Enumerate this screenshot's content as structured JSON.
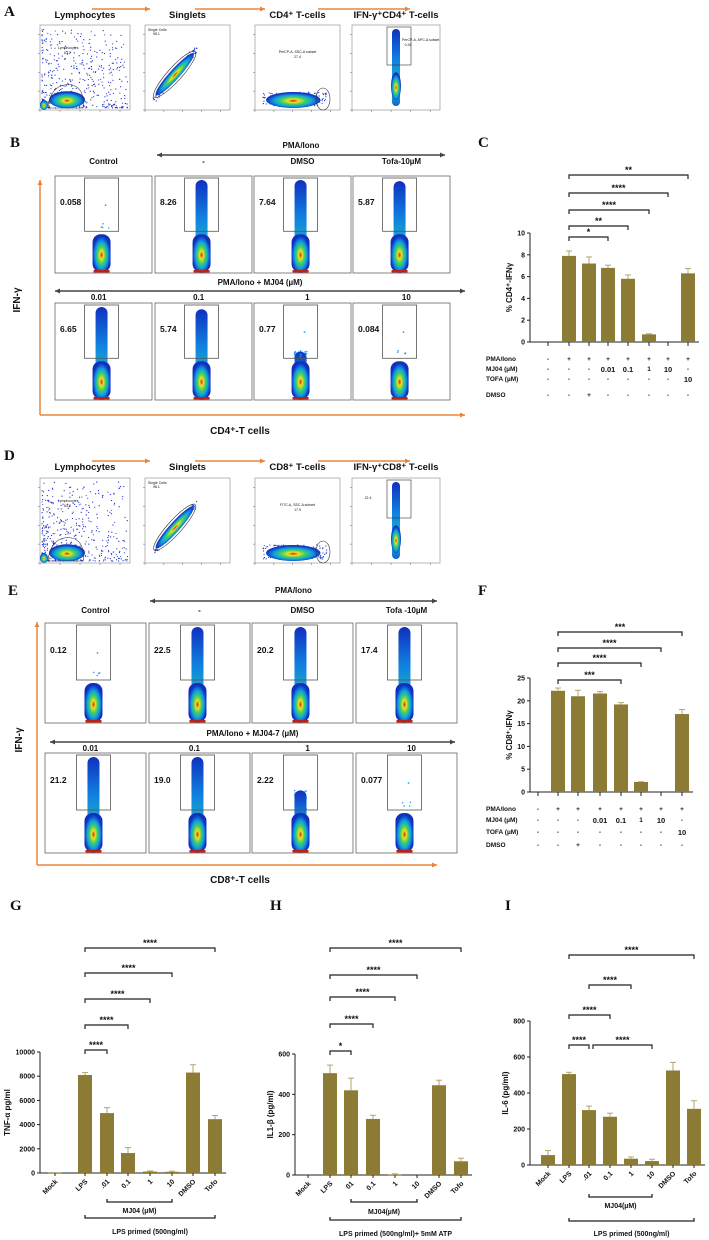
{
  "colors": {
    "bar": "#8b7b35",
    "error": "#b5a56a",
    "arrow": "#e8853d",
    "gate": "#555555"
  },
  "panel_labels": {
    "A": "A",
    "B": "B",
    "C": "C",
    "D": "D",
    "E": "E",
    "F": "F",
    "G": "G",
    "H": "H",
    "I": "I"
  },
  "gating": [
    {
      "panel": "A",
      "plots": [
        {
          "title": "Lymphocytes",
          "gate_text": "Lymphocytes",
          "gate_value": "63.2"
        },
        {
          "title": "Singlets",
          "gate_text": "Single Cells",
          "gate_value": "98.1"
        },
        {
          "title": "CD4⁺ T-cells",
          "gate_text": "PerCP-A, SSC-A subset",
          "gate_value": "27.4"
        },
        {
          "title": "IFN-γ⁺CD4⁺ T-cells",
          "gate_text": "PerCP-A, APC-A subset",
          "gate_value": "0.26"
        }
      ]
    },
    {
      "panel": "D",
      "plots": [
        {
          "title": "Lymphocytes",
          "gate_text": "Lymphocytes",
          "gate_value": "63.2"
        },
        {
          "title": "Singlets",
          "gate_text": "Single Cells",
          "gate_value": "98.1"
        },
        {
          "title": "CD8⁺ T-cells",
          "gate_text": "FITC-A, SSC-A subset",
          "gate_value": "17.9"
        },
        {
          "title": "IFN-γ⁺CD8⁺ T-cells",
          "gate_text": "",
          "gate_value": "22.4"
        }
      ]
    }
  ],
  "ifn_grids": [
    {
      "panel": "B",
      "top_group": "PMA/Iono",
      "extra_dash": "-",
      "top_labels": [
        "Control",
        "-",
        "DMSO",
        "Tofa-10µM"
      ],
      "mid_label": "PMA/Iono +   MJ04 (µM)",
      "bottom_labels": [
        "0.01",
        "0.1",
        "1",
        "10"
      ],
      "values": [
        "0.058",
        "8.26",
        "7.64",
        "5.87",
        "6.65",
        "5.74",
        "0.77",
        "0.084"
      ],
      "y_axis": "IFN-γ",
      "x_axis": "CD4⁺-T cells"
    },
    {
      "panel": "E",
      "top_group": "PMA/Iono",
      "extra_dash": "",
      "top_labels": [
        "Control",
        "-",
        "DMSO",
        "Tofa -10µM"
      ],
      "mid_label": "PMA/Iono + MJ04-7 (µM)",
      "bottom_labels": [
        "0.01",
        "0.1",
        "1",
        "10"
      ],
      "values": [
        "0.12",
        "22.5",
        "20.2",
        "17.4",
        "21.2",
        "19.0",
        "2.22",
        "0.077"
      ],
      "y_axis": "IFN-γ",
      "x_axis": "CD8⁺-T cells"
    }
  ],
  "chart_data": [
    {
      "panel": "C",
      "type": "bar",
      "ylabel": "% CD4⁺-IFNγ",
      "ylim": [
        0,
        10
      ],
      "yticks": [
        "0",
        "2",
        "4",
        "6",
        "8",
        "10"
      ],
      "values": [
        0,
        7.9,
        7.2,
        6.8,
        5.8,
        0.7,
        0,
        6.3
      ],
      "errors": [
        0,
        0.45,
        0.6,
        0.25,
        0.35,
        0.05,
        0,
        0.45
      ],
      "significance": [
        {
          "from": 1,
          "to": 3,
          "label": "*"
        },
        {
          "from": 1,
          "to": 4,
          "label": "**"
        },
        {
          "from": 1,
          "to": 5,
          "label": "****"
        },
        {
          "from": 1,
          "to": 6,
          "label": "****"
        },
        {
          "from": 1,
          "to": 7,
          "label": "**"
        }
      ],
      "conditions": [
        {
          "label": "PMA/Iono",
          "values": [
            "-",
            "+",
            "+",
            "+",
            "+",
            "+",
            "+",
            "+"
          ]
        },
        {
          "label": "MJ04 (µM)",
          "values": [
            "-",
            "-",
            "-",
            "0.01",
            "0.1",
            "1",
            "10",
            "-"
          ]
        },
        {
          "label": "TOFA (µM)",
          "values": [
            "-",
            "-",
            "-",
            "-",
            "-",
            "-",
            "-",
            "10"
          ]
        },
        {
          "label": "DMSO",
          "values": [
            "-",
            "-",
            "+",
            "-",
            "-",
            "-",
            "-",
            "-"
          ]
        }
      ]
    },
    {
      "panel": "F",
      "type": "bar",
      "ylabel": "% CD8⁺-IFNγ",
      "ylim": [
        0,
        25
      ],
      "yticks": [
        "0",
        "5",
        "10",
        "15",
        "20",
        "25"
      ],
      "values": [
        0,
        22.2,
        21.0,
        21.6,
        19.2,
        2.2,
        0,
        17.1
      ],
      "errors": [
        0,
        0.6,
        1.3,
        0.4,
        0.4,
        0.05,
        0,
        1.0
      ],
      "significance": [
        {
          "from": 1,
          "to": 4,
          "label": "***"
        },
        {
          "from": 1,
          "to": 5,
          "label": "****"
        },
        {
          "from": 1,
          "to": 6,
          "label": "****"
        },
        {
          "from": 1,
          "to": 7,
          "label": "***"
        }
      ],
      "conditions": [
        {
          "label": "PMA/Iono",
          "values": [
            "-",
            "+",
            "+",
            "+",
            "+",
            "+",
            "+",
            "+"
          ]
        },
        {
          "label": "MJ04 (µM)",
          "values": [
            "-",
            "-",
            "-",
            "0.01",
            "0.1",
            "1",
            "10",
            "-"
          ]
        },
        {
          "label": "TOFA (µM)",
          "values": [
            "-",
            "-",
            "-",
            "-",
            "-",
            "-",
            "-",
            "10"
          ]
        },
        {
          "label": "DMSO",
          "values": [
            "-",
            "-",
            "+",
            "-",
            "-",
            "-",
            "-",
            "-"
          ]
        }
      ]
    },
    {
      "panel": "G",
      "type": "bar",
      "ylabel": "TNF-α pg/ml",
      "ylim": [
        0,
        10000
      ],
      "yticks": [
        "0",
        "2000",
        "4000",
        "6000",
        "8000",
        "10000"
      ],
      "categories": [
        "Mock",
        "LPS",
        ".01",
        "0.1",
        "1",
        "10",
        "DMSO",
        "Tofo"
      ],
      "values": [
        50,
        8100,
        4950,
        1650,
        120,
        100,
        8300,
        4450
      ],
      "errors": [
        0,
        200,
        450,
        450,
        50,
        50,
        650,
        300
      ],
      "significance": [
        {
          "from": 1,
          "to": 2,
          "label": "****"
        },
        {
          "from": 1,
          "to": 3,
          "label": "****"
        },
        {
          "from": 1,
          "to": 4,
          "label": "****"
        },
        {
          "from": 1,
          "to": 5,
          "label": "****"
        },
        {
          "from": 1,
          "to": 7,
          "label": "****"
        }
      ],
      "groups": [
        {
          "label": "MJ04 (µM)",
          "from": 2,
          "to": 5
        },
        {
          "label": "LPS primed (500ng/ml)",
          "from": 1,
          "to": 7
        }
      ]
    },
    {
      "panel": "H",
      "type": "bar",
      "ylabel": "IL1-β (pg/ml)",
      "ylim": [
        0,
        600
      ],
      "yticks": [
        "0",
        "200",
        "400",
        "600"
      ],
      "categories": [
        "Mock",
        "LPS",
        "01",
        "0.1",
        "1",
        "10",
        "DMSO",
        "Tofo"
      ],
      "values": [
        0,
        505,
        420,
        278,
        3,
        0,
        445,
        68
      ],
      "errors": [
        0,
        40,
        60,
        18,
        3,
        0,
        25,
        15
      ],
      "significance": [
        {
          "from": 1,
          "to": 2,
          "label": "*"
        },
        {
          "from": 1,
          "to": 3,
          "label": "****"
        },
        {
          "from": 1,
          "to": 4,
          "label": "****"
        },
        {
          "from": 1,
          "to": 5,
          "label": "****"
        },
        {
          "from": 1,
          "to": 7,
          "label": "****"
        }
      ],
      "groups": [
        {
          "label": "MJ04(µM)",
          "from": 2,
          "to": 5
        },
        {
          "label": "LPS primed (500ng/ml)+ 5mM ATP",
          "from": 1,
          "to": 7
        }
      ]
    },
    {
      "panel": "I",
      "type": "bar",
      "ylabel": "IL-6 (pg/ml)",
      "ylim": [
        0,
        800
      ],
      "yticks": [
        "0",
        "200",
        "400",
        "600",
        "800"
      ],
      "categories": [
        "Mock",
        "LPS",
        ".01",
        "0.1",
        "1",
        "10",
        "DMSO",
        "Tofo"
      ],
      "values": [
        55,
        505,
        305,
        268,
        35,
        22,
        525,
        312
      ],
      "errors": [
        25,
        10,
        22,
        20,
        10,
        10,
        45,
        45
      ],
      "significance": [
        {
          "from": 1,
          "to": 2,
          "label": "****"
        },
        {
          "from": 2,
          "to": 5,
          "label": "****"
        },
        {
          "from": 1,
          "to": 3,
          "label": "****"
        },
        {
          "from": 2,
          "to": 4,
          "label": "****"
        },
        {
          "from": 1,
          "to": 7,
          "label": "****"
        }
      ],
      "groups": [
        {
          "label": "MJ04(µM)",
          "from": 2,
          "to": 5
        },
        {
          "label": "LPS primed (500ng/ml)",
          "from": 1,
          "to": 7
        }
      ]
    }
  ]
}
